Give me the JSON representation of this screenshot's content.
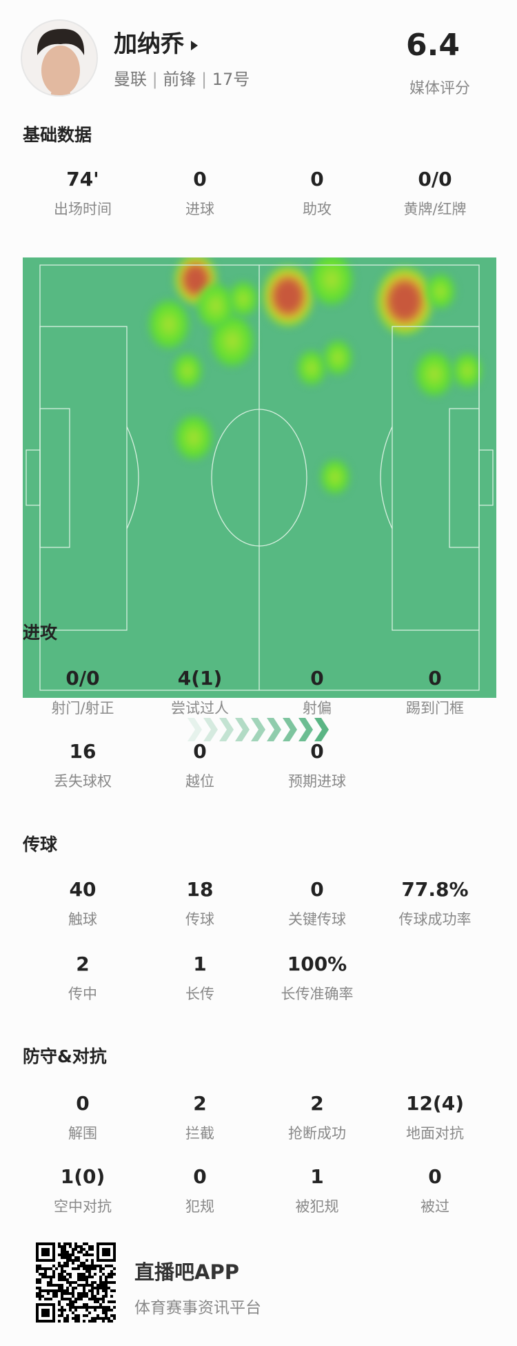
{
  "player": {
    "name": "加纳乔",
    "team": "曼联",
    "position": "前锋",
    "number": "17号",
    "rating": "6.4",
    "rating_label": "媒体评分"
  },
  "sections": {
    "basic": {
      "title": "基础数据",
      "stats": [
        {
          "value": "74'",
          "label": "出场时间"
        },
        {
          "value": "0",
          "label": "进球"
        },
        {
          "value": "0",
          "label": "助攻"
        },
        {
          "value": "0/0",
          "label": "黄牌/红牌"
        }
      ]
    },
    "attack": {
      "title": "进攻",
      "stats": [
        {
          "value": "0/0",
          "label": "射门/射正"
        },
        {
          "value": "4(1)",
          "label": "尝试过人"
        },
        {
          "value": "0",
          "label": "射偏"
        },
        {
          "value": "0",
          "label": "踢到门框"
        },
        {
          "value": "16",
          "label": "丢失球权"
        },
        {
          "value": "0",
          "label": "越位"
        },
        {
          "value": "0",
          "label": "预期进球"
        }
      ]
    },
    "passing": {
      "title": "传球",
      "stats": [
        {
          "value": "40",
          "label": "触球"
        },
        {
          "value": "18",
          "label": "传球"
        },
        {
          "value": "0",
          "label": "关键传球"
        },
        {
          "value": "77.8%",
          "label": "传球成功率"
        },
        {
          "value": "2",
          "label": "传中"
        },
        {
          "value": "1",
          "label": "长传"
        },
        {
          "value": "100%",
          "label": "长传准确率"
        }
      ]
    },
    "defense": {
      "title": "防守&对抗",
      "stats": [
        {
          "value": "0",
          "label": "解围"
        },
        {
          "value": "2",
          "label": "拦截"
        },
        {
          "value": "2",
          "label": "抢断成功"
        },
        {
          "value": "12(4)",
          "label": "地面对抗"
        },
        {
          "value": "1(0)",
          "label": "空中对抗"
        },
        {
          "value": "0",
          "label": "犯规"
        },
        {
          "value": "1",
          "label": "被犯规"
        },
        {
          "value": "0",
          "label": "被过"
        }
      ]
    }
  },
  "colors": {
    "pitch": "#57b982",
    "accent": "#4caf7a"
  },
  "footer": {
    "app_name": "直播吧APP",
    "slogan": "体育赛事资讯平台"
  }
}
